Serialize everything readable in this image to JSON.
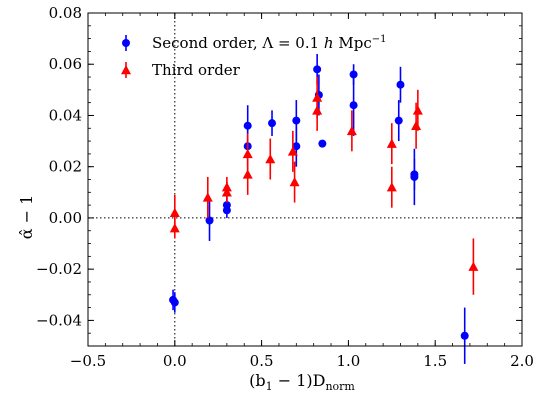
{
  "chart_data": {
    "type": "scatter",
    "xlabel": "(b₁ − 1)Dₙₒᵣₘ",
    "xlabel_parts": {
      "main": "(b",
      "sub1": "1",
      "mid": " − 1)D",
      "sub2": "norm"
    },
    "ylabel": "α̂ − 1",
    "xlim": [
      -0.5,
      2.0
    ],
    "ylim": [
      -0.05,
      0.08
    ],
    "xticks": [
      -0.5,
      0.0,
      0.5,
      1.0,
      1.5,
      2.0
    ],
    "xtick_labels": [
      "−0.5",
      "0.0",
      "0.5",
      "1.0",
      "1.5",
      "2.0"
    ],
    "yticks": [
      -0.04,
      -0.02,
      0.0,
      0.02,
      0.04,
      0.06,
      0.08
    ],
    "ytick_labels": [
      "−0.04",
      "−0.02",
      "0.00",
      "0.02",
      "0.04",
      "0.06",
      "0.08"
    ],
    "grid": false,
    "reference_lines": {
      "horizontal_y": 0.0,
      "vertical_x": 0.0,
      "style": "dotted"
    },
    "legend": "top-left",
    "series": [
      {
        "name": "Second order, Λ = 0.1 h Mpc⁻¹",
        "legend_parts": {
          "main": "Second order, Λ = 0.1 ",
          "h": "h",
          "unit": " Mpc",
          "sup": "−1"
        },
        "color": "#0000ff",
        "marker": "circle",
        "points": [
          {
            "x": -0.01,
            "y": -0.032,
            "err": 0.004
          },
          {
            "x": 0.0,
            "y": -0.033,
            "err": 0.004
          },
          {
            "x": 0.2,
            "y": -0.001,
            "err": 0.008
          },
          {
            "x": 0.3,
            "y": 0.005,
            "err": 0.003
          },
          {
            "x": 0.3,
            "y": 0.003,
            "err": 0.003
          },
          {
            "x": 0.42,
            "y": 0.036,
            "err": 0.008
          },
          {
            "x": 0.42,
            "y": 0.028,
            "err": 0.008
          },
          {
            "x": 0.56,
            "y": 0.037,
            "err": 0.005
          },
          {
            "x": 0.7,
            "y": 0.038,
            "err": 0.008
          },
          {
            "x": 0.7,
            "y": 0.028,
            "err": 0.008
          },
          {
            "x": 0.82,
            "y": 0.058,
            "err": 0.006
          },
          {
            "x": 0.83,
            "y": 0.048,
            "err": 0.008
          },
          {
            "x": 0.85,
            "y": 0.029,
            "err": 0.0
          },
          {
            "x": 1.03,
            "y": 0.056,
            "err": 0.004
          },
          {
            "x": 1.03,
            "y": 0.044,
            "err": 0.012
          },
          {
            "x": 1.3,
            "y": 0.052,
            "err": 0.007
          },
          {
            "x": 1.29,
            "y": 0.038,
            "err": 0.008
          },
          {
            "x": 1.38,
            "y": 0.017,
            "err": 0.006
          },
          {
            "x": 1.38,
            "y": 0.016,
            "err": 0.011
          },
          {
            "x": 1.67,
            "y": -0.046,
            "err": 0.011
          }
        ]
      },
      {
        "name": "Third order",
        "color": "#ff0000",
        "marker": "triangle",
        "points": [
          {
            "x": 0.0,
            "y": 0.002,
            "err": 0.007
          },
          {
            "x": 0.0,
            "y": -0.004,
            "err": 0.004
          },
          {
            "x": 0.19,
            "y": 0.008,
            "err": 0.008
          },
          {
            "x": 0.3,
            "y": 0.012,
            "err": 0.004
          },
          {
            "x": 0.3,
            "y": 0.01,
            "err": 0.004
          },
          {
            "x": 0.42,
            "y": 0.025,
            "err": 0.008
          },
          {
            "x": 0.42,
            "y": 0.017,
            "err": 0.008
          },
          {
            "x": 0.55,
            "y": 0.023,
            "err": 0.008
          },
          {
            "x": 0.68,
            "y": 0.026,
            "err": 0.008
          },
          {
            "x": 0.69,
            "y": 0.014,
            "err": 0.008
          },
          {
            "x": 0.82,
            "y": 0.047,
            "err": 0.008
          },
          {
            "x": 0.82,
            "y": 0.042,
            "err": 0.008
          },
          {
            "x": 1.02,
            "y": 0.034,
            "err": 0.008
          },
          {
            "x": 1.25,
            "y": 0.029,
            "err": 0.008
          },
          {
            "x": 1.25,
            "y": 0.012,
            "err": 0.008
          },
          {
            "x": 1.4,
            "y": 0.042,
            "err": 0.008
          },
          {
            "x": 1.39,
            "y": 0.036,
            "err": 0.009
          },
          {
            "x": 1.72,
            "y": -0.019,
            "err": 0.011
          }
        ]
      }
    ]
  }
}
